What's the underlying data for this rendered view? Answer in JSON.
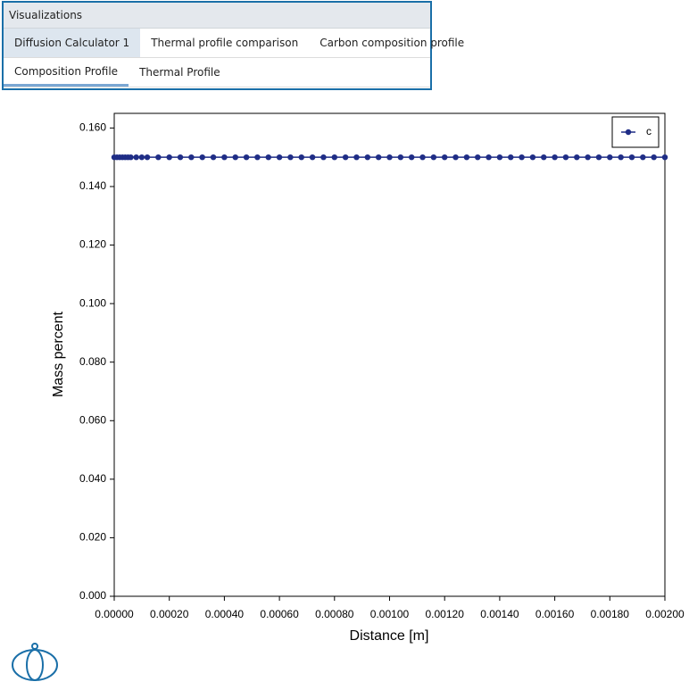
{
  "ui": {
    "panel_title": "Visualizations",
    "tabs": [
      "Diffusion Calculator 1",
      "Thermal profile comparison",
      "Carbon composition profile"
    ],
    "subtabs": [
      "Composition Profile",
      "Thermal Profile"
    ]
  },
  "chart_data": {
    "type": "line",
    "markers": true,
    "legend": "upper right",
    "xlabel": "Distance [m]",
    "ylabel": "Mass percent",
    "x": [
      0,
      1e-05,
      2e-05,
      3e-05,
      4e-05,
      5e-05,
      6e-05,
      8e-05,
      0.0001,
      0.00012,
      0.00016,
      0.0002,
      0.00024,
      0.00028,
      0.00032,
      0.00036,
      0.0004,
      0.00044,
      0.00048,
      0.00052,
      0.00056,
      0.0006,
      0.00064,
      0.00068,
      0.00072,
      0.00076,
      0.0008,
      0.00084,
      0.00088,
      0.00092,
      0.00096,
      0.001,
      0.00104,
      0.00108,
      0.00112,
      0.00116,
      0.0012,
      0.00124,
      0.00128,
      0.00132,
      0.00136,
      0.0014,
      0.00144,
      0.00148,
      0.00152,
      0.00156,
      0.0016,
      0.00164,
      0.00168,
      0.00172,
      0.00176,
      0.0018,
      0.00184,
      0.00188,
      0.00192,
      0.00196,
      0.002
    ],
    "series": [
      {
        "name": "c",
        "color": "#1f2d86",
        "values": [
          0.15,
          0.15,
          0.15,
          0.15,
          0.15,
          0.15,
          0.15,
          0.15,
          0.15,
          0.15,
          0.15,
          0.15,
          0.15,
          0.15,
          0.15,
          0.15,
          0.15,
          0.15,
          0.15,
          0.15,
          0.15,
          0.15,
          0.15,
          0.15,
          0.15,
          0.15,
          0.15,
          0.15,
          0.15,
          0.15,
          0.15,
          0.15,
          0.15,
          0.15,
          0.15,
          0.15,
          0.15,
          0.15,
          0.15,
          0.15,
          0.15,
          0.15,
          0.15,
          0.15,
          0.15,
          0.15,
          0.15,
          0.15,
          0.15,
          0.15,
          0.15,
          0.15,
          0.15,
          0.15,
          0.15,
          0.15,
          0.15
        ]
      }
    ],
    "xlim": [
      0,
      0.002
    ],
    "xticks": [
      {
        "value": 0,
        "label": "0.00000"
      },
      {
        "value": 0.0002,
        "label": "0.00020"
      },
      {
        "value": 0.0004,
        "label": "0.00040"
      },
      {
        "value": 0.0006,
        "label": "0.00060"
      },
      {
        "value": 0.0008,
        "label": "0.00080"
      },
      {
        "value": 0.001,
        "label": "0.00100"
      },
      {
        "value": 0.0012,
        "label": "0.00120"
      },
      {
        "value": 0.0014,
        "label": "0.00140"
      },
      {
        "value": 0.0016,
        "label": "0.00160"
      },
      {
        "value": 0.0018,
        "label": "0.00180"
      },
      {
        "value": 0.002,
        "label": "0.00200"
      }
    ],
    "ylim": [
      0,
      0.165
    ],
    "yticks": [
      {
        "value": 0,
        "label": "0.000"
      },
      {
        "value": 0.02,
        "label": "0.020"
      },
      {
        "value": 0.04,
        "label": "0.040"
      },
      {
        "value": 0.06,
        "label": "0.060"
      },
      {
        "value": 0.08,
        "label": "0.080"
      },
      {
        "value": 0.1,
        "label": "0.100"
      },
      {
        "value": 0.12,
        "label": "0.120"
      },
      {
        "value": 0.14,
        "label": "0.140"
      },
      {
        "value": 0.16,
        "label": "0.160"
      }
    ]
  }
}
